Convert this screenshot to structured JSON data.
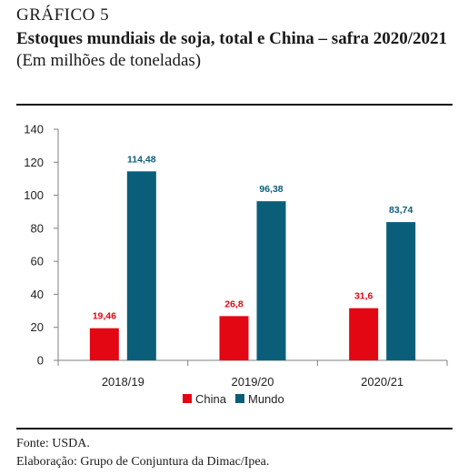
{
  "header": {
    "label": "GRÁFICO 5",
    "title": "Estoques mundiais de soja, total e China – safra 2020/2021",
    "unit": "(Em milhões de toneladas)"
  },
  "footer": {
    "source": "Fonte: USDA.",
    "credit": "Elaboração: Grupo de Conjuntura da Dimac/Ipea."
  },
  "colors": {
    "china": "#e30613",
    "mundo": "#0b5e7a",
    "axis": "#7f7f7f"
  },
  "chart_data": {
    "type": "bar",
    "categories": [
      "2018/19",
      "2019/20",
      "2020/21"
    ],
    "series": [
      {
        "name": "China",
        "values": [
          19.46,
          26.8,
          31.6
        ],
        "labels": [
          "19,46",
          "26,8",
          "31,6"
        ]
      },
      {
        "name": "Mundo",
        "values": [
          114.48,
          96.38,
          83.74
        ],
        "labels": [
          "114,48",
          "96,38",
          "83,74"
        ]
      }
    ],
    "ylim": [
      0,
      140
    ],
    "yticks": [
      "0",
      "20",
      "40",
      "60",
      "80",
      "100",
      "120",
      "140"
    ],
    "ytick_values": [
      0,
      20,
      40,
      60,
      80,
      100,
      120,
      140
    ],
    "grid": false,
    "legend": "bottom-center"
  }
}
